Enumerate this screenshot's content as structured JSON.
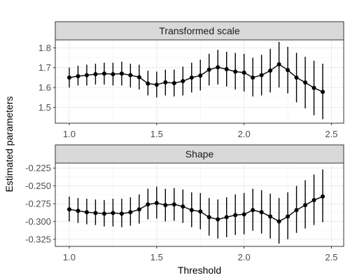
{
  "chart_data": {
    "type": "line",
    "xlabel": "Threshold",
    "ylabel": "Estimated parameters",
    "x_ticks": [
      "1.0",
      "1.5",
      "2.0",
      "2.5"
    ],
    "xlim": [
      0.92,
      2.57
    ],
    "grid": true,
    "legend": "none",
    "panels": [
      {
        "name": "Transformed scale",
        "ylim": [
          1.42,
          1.84
        ],
        "y_ticks": [
          "1.5",
          "1.6",
          "1.7",
          "1.8"
        ],
        "points": [
          {
            "x": 1.0,
            "y": 1.65,
            "lo": 1.6,
            "hi": 1.7
          },
          {
            "x": 1.05,
            "y": 1.657,
            "lo": 1.61,
            "hi": 1.71
          },
          {
            "x": 1.1,
            "y": 1.662,
            "lo": 1.61,
            "hi": 1.715
          },
          {
            "x": 1.15,
            "y": 1.667,
            "lo": 1.615,
            "hi": 1.72
          },
          {
            "x": 1.2,
            "y": 1.67,
            "lo": 1.615,
            "hi": 1.725
          },
          {
            "x": 1.25,
            "y": 1.667,
            "lo": 1.61,
            "hi": 1.725
          },
          {
            "x": 1.3,
            "y": 1.67,
            "lo": 1.61,
            "hi": 1.73
          },
          {
            "x": 1.35,
            "y": 1.662,
            "lo": 1.6,
            "hi": 1.72
          },
          {
            "x": 1.4,
            "y": 1.652,
            "lo": 1.59,
            "hi": 1.715
          },
          {
            "x": 1.45,
            "y": 1.62,
            "lo": 1.56,
            "hi": 1.685
          },
          {
            "x": 1.5,
            "y": 1.614,
            "lo": 1.55,
            "hi": 1.68
          },
          {
            "x": 1.55,
            "y": 1.626,
            "lo": 1.56,
            "hi": 1.69
          },
          {
            "x": 1.6,
            "y": 1.622,
            "lo": 1.555,
            "hi": 1.69
          },
          {
            "x": 1.65,
            "y": 1.632,
            "lo": 1.56,
            "hi": 1.705
          },
          {
            "x": 1.7,
            "y": 1.65,
            "lo": 1.575,
            "hi": 1.725
          },
          {
            "x": 1.75,
            "y": 1.66,
            "lo": 1.585,
            "hi": 1.74
          },
          {
            "x": 1.8,
            "y": 1.69,
            "lo": 1.61,
            "hi": 1.77
          },
          {
            "x": 1.85,
            "y": 1.702,
            "lo": 1.615,
            "hi": 1.79
          },
          {
            "x": 1.9,
            "y": 1.692,
            "lo": 1.605,
            "hi": 1.78
          },
          {
            "x": 1.95,
            "y": 1.68,
            "lo": 1.59,
            "hi": 1.775
          },
          {
            "x": 2.0,
            "y": 1.675,
            "lo": 1.58,
            "hi": 1.77
          },
          {
            "x": 2.05,
            "y": 1.65,
            "lo": 1.555,
            "hi": 1.75
          },
          {
            "x": 2.1,
            "y": 1.662,
            "lo": 1.56,
            "hi": 1.765
          },
          {
            "x": 2.15,
            "y": 1.685,
            "lo": 1.575,
            "hi": 1.795
          },
          {
            "x": 2.2,
            "y": 1.717,
            "lo": 1.6,
            "hi": 1.83
          },
          {
            "x": 2.25,
            "y": 1.688,
            "lo": 1.57,
            "hi": 1.805
          },
          {
            "x": 2.3,
            "y": 1.65,
            "lo": 1.525,
            "hi": 1.775
          },
          {
            "x": 2.35,
            "y": 1.625,
            "lo": 1.495,
            "hi": 1.755
          },
          {
            "x": 2.4,
            "y": 1.598,
            "lo": 1.46,
            "hi": 1.735
          },
          {
            "x": 2.45,
            "y": 1.578,
            "lo": 1.44,
            "hi": 1.72
          }
        ]
      },
      {
        "name": "Shape",
        "ylim": [
          -0.335,
          -0.218
        ],
        "y_ticks": [
          "-0.225",
          "-0.250",
          "-0.275",
          "-0.300",
          "-0.325"
        ],
        "points": [
          {
            "x": 1.0,
            "y": -0.283,
            "lo": -0.3,
            "hi": -0.265
          },
          {
            "x": 1.05,
            "y": -0.285,
            "lo": -0.302,
            "hi": -0.267
          },
          {
            "x": 1.1,
            "y": -0.287,
            "lo": -0.304,
            "hi": -0.268
          },
          {
            "x": 1.15,
            "y": -0.288,
            "lo": -0.305,
            "hi": -0.269
          },
          {
            "x": 1.2,
            "y": -0.289,
            "lo": -0.307,
            "hi": -0.27
          },
          {
            "x": 1.25,
            "y": -0.288,
            "lo": -0.307,
            "hi": -0.268
          },
          {
            "x": 1.3,
            "y": -0.289,
            "lo": -0.308,
            "hi": -0.268
          },
          {
            "x": 1.35,
            "y": -0.287,
            "lo": -0.306,
            "hi": -0.266
          },
          {
            "x": 1.4,
            "y": -0.283,
            "lo": -0.303,
            "hi": -0.262
          },
          {
            "x": 1.45,
            "y": -0.276,
            "lo": -0.297,
            "hi": -0.254
          },
          {
            "x": 1.5,
            "y": -0.274,
            "lo": -0.296,
            "hi": -0.251
          },
          {
            "x": 1.55,
            "y": -0.277,
            "lo": -0.3,
            "hi": -0.254
          },
          {
            "x": 1.6,
            "y": -0.276,
            "lo": -0.299,
            "hi": -0.253
          },
          {
            "x": 1.65,
            "y": -0.279,
            "lo": -0.302,
            "hi": -0.255
          },
          {
            "x": 1.7,
            "y": -0.284,
            "lo": -0.308,
            "hi": -0.259
          },
          {
            "x": 1.75,
            "y": -0.286,
            "lo": -0.311,
            "hi": -0.26
          },
          {
            "x": 1.8,
            "y": -0.294,
            "lo": -0.32,
            "hi": -0.267
          },
          {
            "x": 1.85,
            "y": -0.297,
            "lo": -0.324,
            "hi": -0.269
          },
          {
            "x": 1.9,
            "y": -0.294,
            "lo": -0.322,
            "hi": -0.266
          },
          {
            "x": 1.95,
            "y": -0.291,
            "lo": -0.319,
            "hi": -0.262
          },
          {
            "x": 2.0,
            "y": -0.29,
            "lo": -0.318,
            "hi": -0.26
          },
          {
            "x": 2.05,
            "y": -0.284,
            "lo": -0.313,
            "hi": -0.254
          },
          {
            "x": 2.1,
            "y": -0.287,
            "lo": -0.317,
            "hi": -0.256
          },
          {
            "x": 2.15,
            "y": -0.293,
            "lo": -0.324,
            "hi": -0.261
          },
          {
            "x": 2.2,
            "y": -0.3,
            "lo": -0.331,
            "hi": -0.267
          },
          {
            "x": 2.25,
            "y": -0.293,
            "lo": -0.325,
            "hi": -0.259
          },
          {
            "x": 2.3,
            "y": -0.284,
            "lo": -0.316,
            "hi": -0.25
          },
          {
            "x": 2.35,
            "y": -0.277,
            "lo": -0.31,
            "hi": -0.242
          },
          {
            "x": 2.4,
            "y": -0.27,
            "lo": -0.305,
            "hi": -0.234
          },
          {
            "x": 2.45,
            "y": -0.265,
            "lo": -0.301,
            "hi": -0.227
          }
        ]
      }
    ]
  }
}
